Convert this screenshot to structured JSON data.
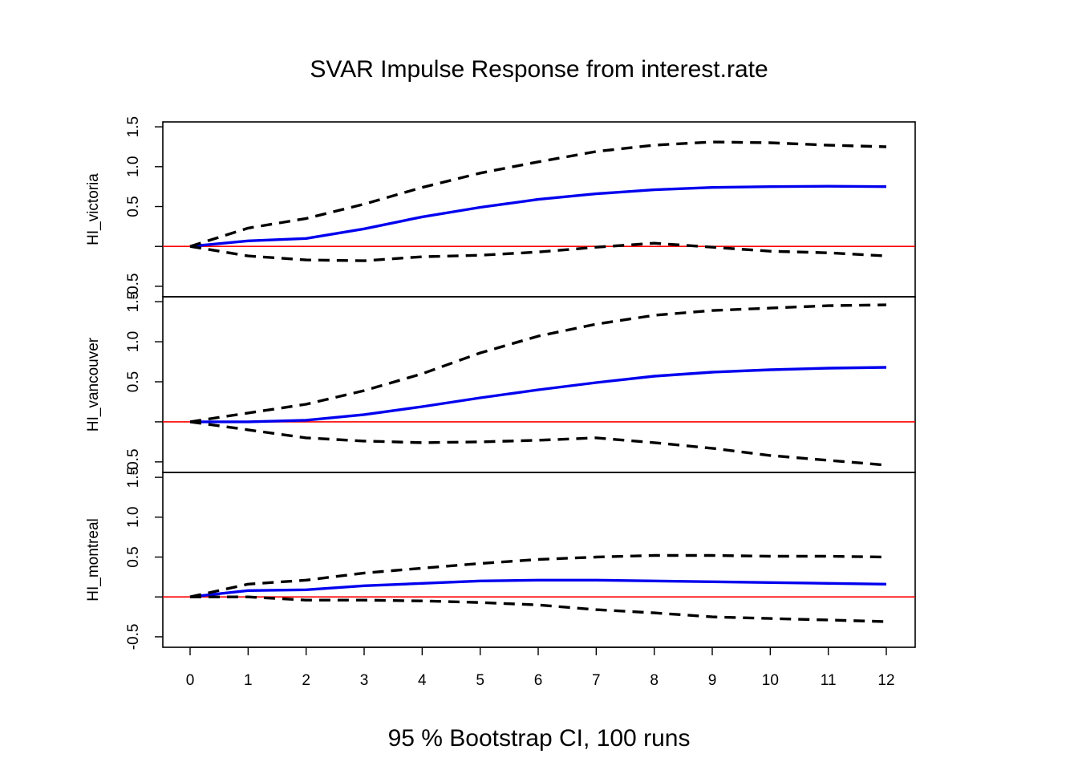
{
  "chart_data": {
    "type": "line",
    "title": "SVAR Impulse Response from interest.rate",
    "xlabel": "95 % Bootstrap CI,  100 runs",
    "x": [
      0,
      1,
      2,
      3,
      4,
      5,
      6,
      7,
      8,
      9,
      10,
      11,
      12
    ],
    "x_tick_labels": [
      "0",
      "1",
      "2",
      "3",
      "4",
      "5",
      "6",
      "7",
      "8",
      "9",
      "10",
      "11",
      "12"
    ],
    "y_tick_labels": [
      "-0.5",
      "0.5",
      "1.0",
      "1.5"
    ],
    "ylim": [
      -0.6,
      1.55
    ],
    "zero_line_color": "#ff0000",
    "response_color": "#0000ee",
    "ci_color": "#000000",
    "panels": [
      {
        "ylabel": "HI_victoria",
        "series": [
          {
            "values": [
              0,
              0.07,
              0.1,
              0.22,
              0.37,
              0.49,
              0.59,
              0.66,
              0.71,
              0.74,
              0.75,
              0.755,
              0.75
            ]
          },
          {
            "values": [
              0,
              0.23,
              0.35,
              0.53,
              0.74,
              0.92,
              1.06,
              1.19,
              1.27,
              1.31,
              1.3,
              1.27,
              1.25
            ]
          },
          {
            "values": [
              0,
              -0.12,
              -0.17,
              -0.18,
              -0.13,
              -0.11,
              -0.07,
              -0.01,
              0.04,
              -0.01,
              -0.06,
              -0.08,
              -0.12
            ]
          }
        ]
      },
      {
        "ylabel": "HI_vancouver",
        "series": [
          {
            "values": [
              0,
              0.0,
              0.02,
              0.09,
              0.19,
              0.3,
              0.4,
              0.49,
              0.57,
              0.62,
              0.65,
              0.67,
              0.68
            ]
          },
          {
            "values": [
              0,
              0.11,
              0.22,
              0.39,
              0.6,
              0.86,
              1.07,
              1.22,
              1.33,
              1.39,
              1.42,
              1.45,
              1.46
            ]
          },
          {
            "values": [
              0,
              -0.1,
              -0.2,
              -0.24,
              -0.26,
              -0.25,
              -0.23,
              -0.2,
              -0.26,
              -0.33,
              -0.42,
              -0.48,
              -0.54
            ]
          }
        ]
      },
      {
        "ylabel": "HI_montreal",
        "series": [
          {
            "values": [
              0,
              0.08,
              0.09,
              0.14,
              0.17,
              0.2,
              0.21,
              0.21,
              0.2,
              0.19,
              0.18,
              0.17,
              0.16
            ]
          },
          {
            "values": [
              0,
              0.16,
              0.21,
              0.3,
              0.36,
              0.42,
              0.47,
              0.5,
              0.52,
              0.52,
              0.51,
              0.51,
              0.5
            ]
          },
          {
            "values": [
              0,
              0.0,
              -0.04,
              -0.04,
              -0.05,
              -0.07,
              -0.1,
              -0.16,
              -0.2,
              -0.25,
              -0.27,
              -0.29,
              -0.31
            ]
          }
        ]
      }
    ]
  }
}
